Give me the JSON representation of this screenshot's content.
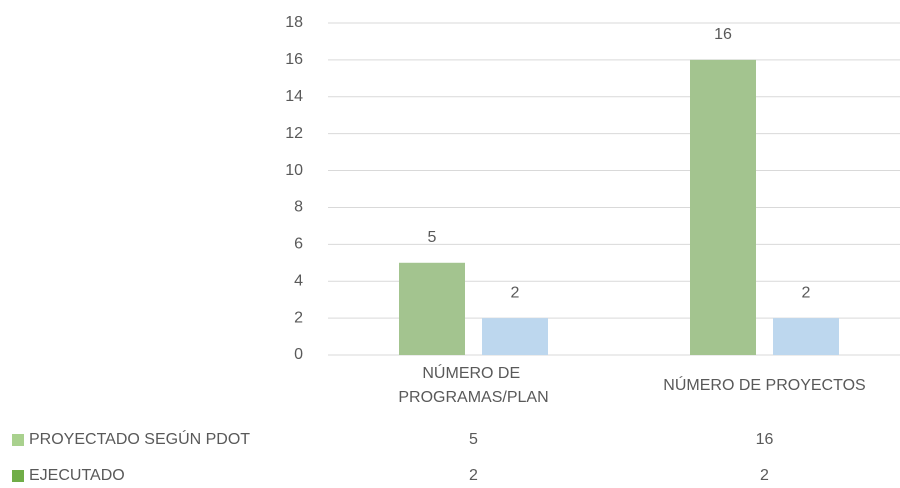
{
  "chart_data": {
    "type": "bar",
    "categories": [
      "NÚMERO DE PROGRAMAS/PLAN",
      "NÚMERO DE PROYECTOS"
    ],
    "series": [
      {
        "name": "PROYECTADO SEGÚN PDOT",
        "color": "#a3c48f",
        "key_color": "#a9d18e",
        "values": [
          5,
          16
        ]
      },
      {
        "name": "EJECUTADO",
        "color": "#bdd7ee",
        "key_color": "#70ad47",
        "values": [
          2,
          2
        ]
      }
    ],
    "ylim": [
      0,
      18
    ],
    "yticks": [
      0,
      2,
      4,
      6,
      8,
      10,
      12,
      14,
      16,
      18
    ],
    "grid": true,
    "data_table": true
  }
}
